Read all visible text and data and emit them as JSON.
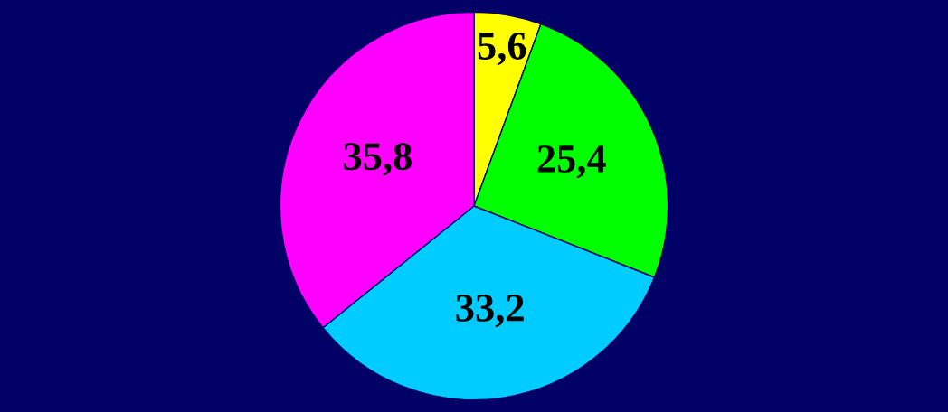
{
  "chart_data": {
    "type": "pie",
    "categories": [
      null,
      null,
      null,
      null
    ],
    "values": [
      5.6,
      25.4,
      33.2,
      35.8
    ],
    "value_labels": [
      "5,6",
      "25,4",
      "33,2",
      "35,8"
    ],
    "colors": [
      "#ffff00",
      "#00ff00",
      "#00ccff",
      "#ff00ff"
    ]
  }
}
